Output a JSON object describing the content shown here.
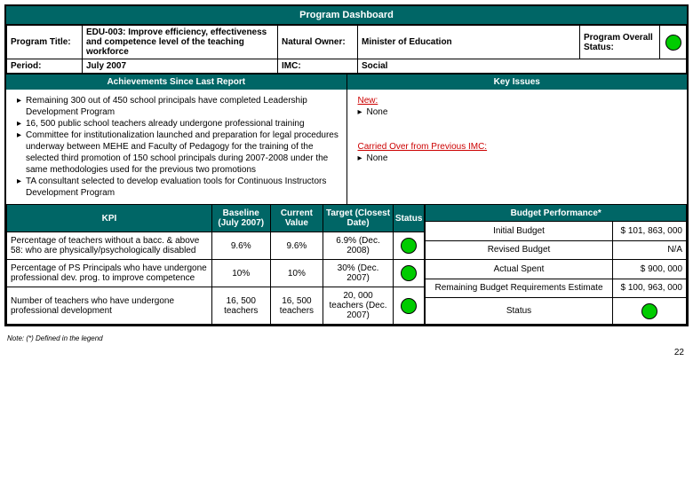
{
  "colors": {
    "teal": "#006666",
    "green": "#00cc00",
    "red": "#cc0000",
    "border": "#000000"
  },
  "header": {
    "title": "Program Dashboard"
  },
  "info": {
    "program_title_label": "Program Title:",
    "program_title_value": "EDU-003: Improve efficiency, effectiveness and competence level of the teaching workforce",
    "natural_owner_label": "Natural Owner:",
    "natural_owner_value": "Minister of Education",
    "overall_status_label": "Program Overall Status:",
    "period_label": "Period:",
    "period_value": "July 2007",
    "imc_label": "IMC:",
    "imc_value": "Social"
  },
  "achievements": {
    "header": "Achievements Since Last Report",
    "items": [
      "Remaining 300 out of 450 school principals have completed Leadership Development  Program",
      "16, 500 public school teachers already undergone professional training",
      "Committee for institutionalization launched and preparation for legal procedures underway between MEHE and Faculty of Pedagogy for the training of the selected third promotion of 150 school principals during 2007-2008 under the same methodologies used for the previous two promotions",
      "TA consultant selected to develop evaluation tools for Continuous Instructors Development Program"
    ]
  },
  "key_issues": {
    "header": "Key Issues",
    "new_label": "New:",
    "new_items": [
      "None"
    ],
    "carried_label": "Carried Over from Previous IMC:",
    "carried_items": [
      "None"
    ]
  },
  "kpi": {
    "headers": [
      "KPI",
      "Baseline (July 2007)",
      "Current Value",
      "Target (Closest Date)",
      "Status"
    ],
    "rows": [
      {
        "name": "Percentage of teachers without a bacc. & above 58: who are physically/psychologically disabled",
        "baseline": "9.6%",
        "current": "9.6%",
        "target": "6.9% (Dec. 2008)",
        "status_color": "#00cc00"
      },
      {
        "name": "Percentage of PS Principals who have undergone professional dev. prog. to improve competence",
        "baseline": "10%",
        "current": "10%",
        "target": "30% (Dec. 2007)",
        "status_color": "#00cc00"
      },
      {
        "name": "Number of teachers who have undergone professional development",
        "baseline": "16, 500 teachers",
        "current": "16, 500 teachers",
        "target": "20, 000 teachers (Dec. 2007)",
        "status_color": "#00cc00"
      }
    ]
  },
  "budget": {
    "header": "Budget Performance*",
    "rows": [
      {
        "label": "Initial Budget",
        "value": "$ 101, 863, 000"
      },
      {
        "label": "Revised Budget",
        "value": "N/A"
      },
      {
        "label": "Actual Spent",
        "value": "$ 900, 000"
      },
      {
        "label": "Remaining Budget Requirements Estimate",
        "value": "$ 100, 963, 000"
      }
    ],
    "status_label": "Status",
    "status_color": "#00cc00"
  },
  "footnote": "Note: (*) Defined in the legend",
  "page_number": "22"
}
